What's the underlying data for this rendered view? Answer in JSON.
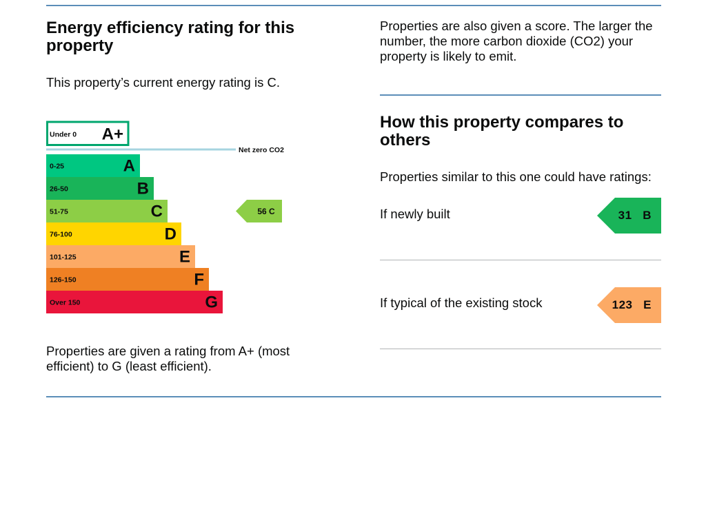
{
  "left": {
    "title": "Energy efficiency rating for this property",
    "current_rating_text": "This property’s current energy rating is C.",
    "scale_note": "Properties are given a rating from A+ (most efficient) to G (least efficient)."
  },
  "chart": {
    "bands": [
      {
        "range": "Under 0",
        "letter": "A+",
        "color": "#ffffff",
        "border": "#00a66e"
      },
      {
        "range": "0-25",
        "letter": "A",
        "color": "#00c781"
      },
      {
        "range": "26-50",
        "letter": "B",
        "color": "#19b459"
      },
      {
        "range": "51-75",
        "letter": "C",
        "color": "#8dce46"
      },
      {
        "range": "76-100",
        "letter": "D",
        "color": "#ffd500"
      },
      {
        "range": "101-125",
        "letter": "E",
        "color": "#fcaa65"
      },
      {
        "range": "126-150",
        "letter": "F",
        "color": "#ef8023"
      },
      {
        "range": "Over 150",
        "letter": "G",
        "color": "#e9153b"
      }
    ],
    "net_zero_label": "Net zero CO2",
    "net_zero_line_color": "#a6d4e0",
    "current": {
      "score": "56",
      "letter": "C",
      "color": "#8dce46"
    }
  },
  "right": {
    "score_note": "Properties are also given a score. The larger the number, the more carbon dioxide (CO2) your property is likely to emit.",
    "title": "How this property compares to others",
    "similar_text": "Properties similar to this one could have ratings:",
    "newly_built": {
      "label": "If newly built",
      "score": "31",
      "letter": "B",
      "color": "#19b459"
    },
    "typical": {
      "label": "If typical of the existing stock",
      "score": "123",
      "letter": "E",
      "color": "#fcaa65"
    }
  }
}
